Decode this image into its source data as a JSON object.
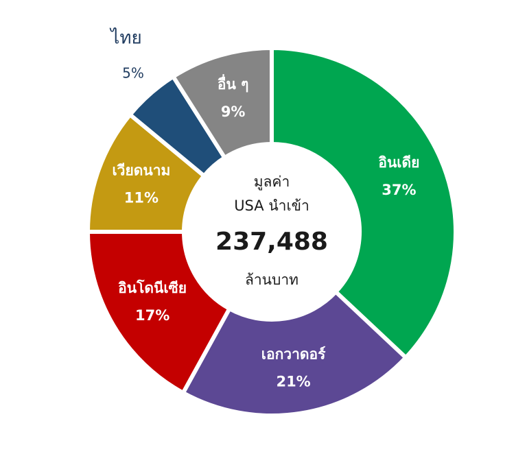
{
  "chart_data": {
    "type": "pie",
    "categories": [
      "อินเดีย",
      "เอกวาดอร์",
      "อินโดนีเซีย",
      "เวียดนาม",
      "ไทย",
      "อื่น ๆ"
    ],
    "values": [
      37,
      21,
      17,
      11,
      5,
      9
    ],
    "value_labels": [
      "37%",
      "21%",
      "17%",
      "11%",
      "5%",
      "9%"
    ],
    "colors": [
      "#00a650",
      "#5c4894",
      "#c40000",
      "#c49a12",
      "#1f4e79",
      "#858585"
    ],
    "center_line1": "มูลค่า",
    "center_line2": "USA นำเข้า",
    "center_total": "237,488",
    "center_unit": "ล้านบาท"
  }
}
